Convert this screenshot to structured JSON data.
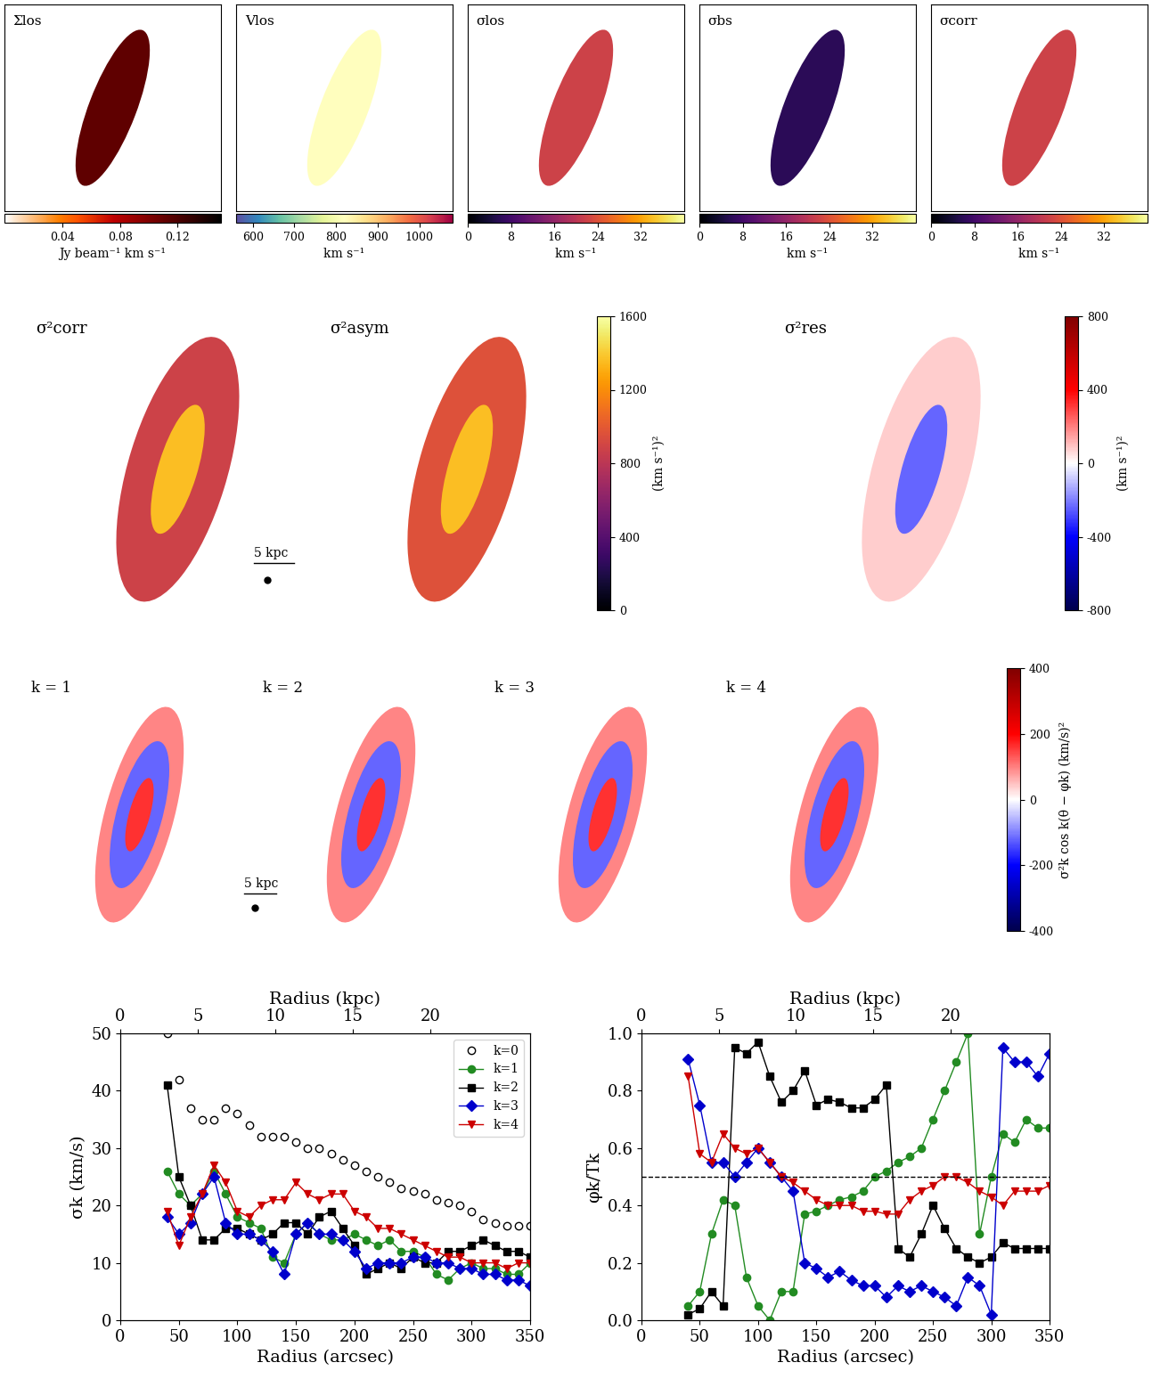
{
  "chart_data": [
    {
      "type": "map",
      "title": "Σlos",
      "tick_labels": false,
      "colorbar": {
        "range": [
          0,
          0.15
        ],
        "ticks": [
          0.04,
          0.08,
          0.12
        ],
        "label": "Jy beam⁻¹ km s⁻¹"
      }
    },
    {
      "type": "map",
      "title": "Vlos",
      "tick_labels": false,
      "colorbar": {
        "range": [
          560,
          1080
        ],
        "ticks": [
          600,
          700,
          800,
          900,
          1000
        ],
        "label": "km s⁻¹"
      }
    },
    {
      "type": "map",
      "title": "σlos",
      "tick_labels": false,
      "colorbar": {
        "range": [
          0,
          40
        ],
        "ticks": [
          0,
          8,
          16,
          24,
          32
        ],
        "label": "km s⁻¹"
      }
    },
    {
      "type": "map",
      "title": "σbs",
      "tick_labels": false,
      "colorbar": {
        "range": [
          0,
          40
        ],
        "ticks": [
          0,
          8,
          16,
          24,
          32
        ],
        "label": "km s⁻¹"
      }
    },
    {
      "type": "map",
      "title": "σcorr",
      "tick_labels": false,
      "colorbar": {
        "range": [
          0,
          40
        ],
        "ticks": [
          0,
          8,
          16,
          24,
          32
        ],
        "label": "km s⁻¹"
      }
    },
    {
      "type": "map",
      "title": "σ²corr",
      "tick_labels": false,
      "scale_bar": "5 kpc"
    },
    {
      "type": "map",
      "title": "σ²asym",
      "tick_labels": false,
      "colorbar": {
        "range": [
          0,
          1600
        ],
        "ticks": [
          0,
          400,
          800,
          1200,
          1600
        ],
        "label": "(km s⁻¹)²"
      }
    },
    {
      "type": "map",
      "title": "σ²res",
      "tick_labels": false,
      "colorbar": {
        "range": [
          -800,
          800
        ],
        "ticks": [
          -800,
          -400,
          0,
          400,
          800
        ],
        "label": "(km s⁻¹)²"
      }
    },
    {
      "type": "map",
      "title": "k = 1",
      "tick_labels": false,
      "scale_bar": "5 kpc"
    },
    {
      "type": "map",
      "title": "k = 2",
      "tick_labels": false
    },
    {
      "type": "map",
      "title": "k = 3",
      "tick_labels": false
    },
    {
      "type": "map",
      "title": "k = 4",
      "tick_labels": false,
      "colorbar": {
        "range": [
          -400,
          400
        ],
        "ticks": [
          -400,
          -200,
          0,
          200,
          400
        ],
        "label": "σ²k cos k(θ − φk) (km/s)²"
      }
    },
    {
      "type": "line",
      "x_label": "Radius (arcsec)",
      "y_label": "σk (km/s)",
      "x2_label": "Radius (kpc)",
      "xlim": [
        0,
        350
      ],
      "xticks": [
        0,
        50,
        100,
        150,
        200,
        250,
        300,
        350
      ],
      "ylim": [
        0,
        50
      ],
      "yticks": [
        0,
        10,
        20,
        30,
        40,
        50
      ],
      "x2lim": [
        0,
        26.4
      ],
      "x2ticks": [
        0,
        5,
        10,
        15,
        20
      ],
      "legend": "upper right",
      "x": [
        40,
        50,
        60,
        70,
        80,
        90,
        100,
        110,
        120,
        130,
        140,
        150,
        160,
        170,
        180,
        190,
        200,
        210,
        220,
        230,
        240,
        250,
        260,
        270,
        280,
        290,
        300,
        310,
        320,
        330,
        340,
        350
      ],
      "series": [
        {
          "name": "k=0",
          "color": "#000000",
          "marker": "circle_open",
          "line_style": "none",
          "values": [
            50,
            42,
            37,
            35,
            35,
            37,
            36,
            34,
            32,
            32,
            32,
            31,
            30,
            30,
            29,
            28,
            27,
            26,
            25,
            24,
            23,
            22.5,
            22,
            21,
            20.5,
            20,
            19,
            17.5,
            17,
            16.5,
            16.5,
            16.5
          ]
        },
        {
          "name": "k=1",
          "color": "#228b22",
          "marker": "circle",
          "line_style": "solid",
          "values": [
            26,
            22,
            20,
            22,
            26,
            22,
            18,
            17,
            16,
            11,
            10,
            15,
            17,
            15,
            14,
            14,
            15,
            14,
            13,
            14,
            12,
            12,
            11,
            8,
            7,
            9,
            10,
            9,
            9,
            8,
            8,
            10
          ]
        },
        {
          "name": "k=2",
          "color": "#000000",
          "marker": "square",
          "line_style": "solid",
          "values": [
            41,
            25,
            20,
            14,
            14,
            16,
            16,
            15,
            14,
            15,
            17,
            17,
            15,
            18,
            19,
            16,
            13,
            8,
            9,
            10,
            9,
            11,
            10,
            10,
            12,
            12,
            13,
            14,
            13,
            12,
            12,
            11
          ]
        },
        {
          "name": "k=3",
          "color": "#0000cc",
          "marker": "diamond",
          "line_style": "solid",
          "values": [
            18,
            15,
            17,
            22,
            25,
            17,
            15,
            15,
            14,
            12,
            8,
            15,
            17,
            15,
            15,
            14,
            12,
            9,
            10,
            10,
            10,
            11,
            11,
            10,
            10,
            9,
            9,
            8,
            8,
            7,
            7,
            6
          ]
        },
        {
          "name": "k=4",
          "color": "#cc0000",
          "marker": "triangle_down",
          "line_style": "solid",
          "values": [
            19,
            13,
            18,
            22,
            27,
            24,
            19,
            18,
            20,
            21,
            21,
            24,
            22,
            21,
            22,
            22,
            19,
            18,
            16,
            16,
            15,
            14,
            13,
            12,
            11,
            11,
            10,
            10,
            10,
            9,
            10,
            10
          ]
        }
      ]
    },
    {
      "type": "line",
      "x_label": "Radius (arcsec)",
      "y_label": "φk/Tk",
      "x2_label": "Radius (kpc)",
      "xlim": [
        0,
        350
      ],
      "xticks": [
        0,
        50,
        100,
        150,
        200,
        250,
        300,
        350
      ],
      "ylim": [
        0,
        1.0
      ],
      "yticks": [
        {
          "value": 0,
          "label": "0.0"
        },
        0.2,
        0.4,
        0.6,
        0.8,
        {
          "value": 1,
          "label": "1.0"
        }
      ],
      "x2lim": [
        0,
        26.4
      ],
      "x2ticks": [
        0,
        5,
        10,
        15,
        20
      ],
      "reference_line": 0.5,
      "x": [
        40,
        50,
        60,
        70,
        80,
        90,
        100,
        110,
        120,
        130,
        140,
        150,
        160,
        170,
        180,
        190,
        200,
        210,
        220,
        230,
        240,
        250,
        260,
        270,
        280,
        290,
        300,
        310,
        320,
        330,
        340,
        350
      ],
      "series": [
        {
          "name": "k=1",
          "color": "#228b22",
          "marker": "circle",
          "line_style": "solid",
          "values": [
            0.05,
            0.1,
            0.3,
            0.42,
            0.4,
            0.15,
            0.05,
            0.0,
            0.1,
            0.1,
            0.37,
            0.38,
            0.4,
            0.42,
            0.43,
            0.45,
            0.5,
            0.52,
            0.55,
            0.57,
            0.6,
            0.7,
            0.8,
            0.9,
            1.0,
            0.3,
            0.5,
            0.65,
            0.62,
            0.7,
            0.67,
            0.67
          ]
        },
        {
          "name": "k=2",
          "color": "#000000",
          "marker": "square",
          "line_style": "solid",
          "values": [
            0.02,
            0.04,
            0.1,
            0.05,
            0.95,
            0.93,
            0.97,
            0.85,
            0.76,
            0.8,
            0.87,
            0.75,
            0.77,
            0.76,
            0.74,
            0.74,
            0.77,
            0.82,
            0.25,
            0.22,
            0.3,
            0.4,
            0.32,
            0.25,
            0.22,
            0.2,
            0.22,
            0.27,
            0.25,
            0.25,
            0.25,
            0.25
          ]
        },
        {
          "name": "k=3",
          "color": "#0000cc",
          "marker": "diamond",
          "line_style": "solid",
          "values": [
            0.91,
            0.75,
            0.55,
            0.55,
            0.5,
            0.55,
            0.6,
            0.55,
            0.5,
            0.45,
            0.2,
            0.18,
            0.15,
            0.17,
            0.14,
            0.12,
            0.12,
            0.08,
            0.12,
            0.1,
            0.12,
            0.1,
            0.08,
            0.05,
            0.15,
            0.12,
            0.02,
            0.95,
            0.9,
            0.9,
            0.85,
            0.93
          ]
        },
        {
          "name": "k=4",
          "color": "#cc0000",
          "marker": "triangle_down",
          "line_style": "solid",
          "values": [
            0.85,
            0.58,
            0.55,
            0.65,
            0.6,
            0.58,
            0.6,
            0.55,
            0.5,
            0.48,
            0.45,
            0.42,
            0.4,
            0.4,
            0.4,
            0.38,
            0.38,
            0.37,
            0.37,
            0.42,
            0.45,
            0.47,
            0.5,
            0.5,
            0.48,
            0.45,
            0.43,
            0.4,
            0.45,
            0.45,
            0.45,
            0.47
          ]
        }
      ]
    }
  ]
}
